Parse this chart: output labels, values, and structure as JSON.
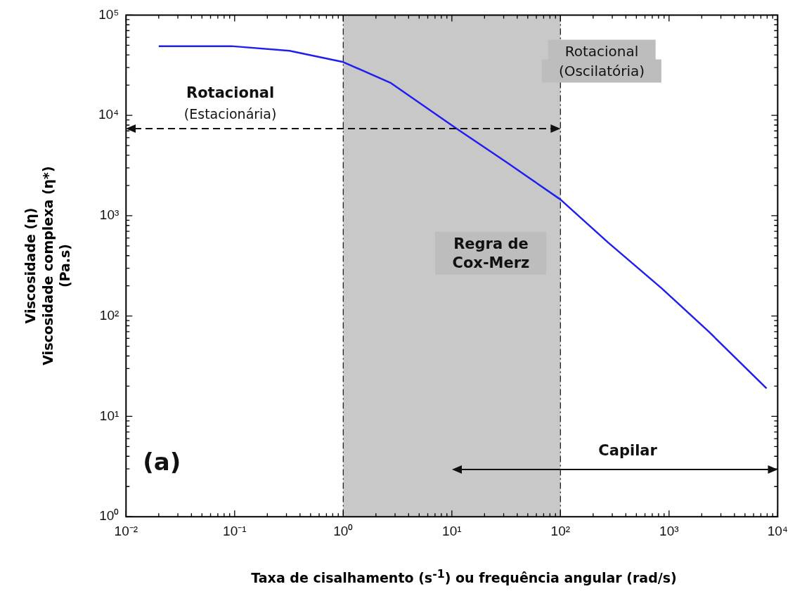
{
  "chart_data": {
    "type": "line",
    "xlabel": "Taxa de cisalhamento  (s$^{-1}$) ou frequência angular (rad/s)",
    "ylabel": "Viscosidade (η)\nViscosidade complexa (η*)\n(Pa.s)",
    "log": "xy",
    "grid": false,
    "legend": false,
    "marker": "none",
    "line_style": "solid",
    "xlim": [
      0.01,
      10000
    ],
    "xticks": [
      {
        "value": 0.01,
        "label": "10⁻²"
      },
      {
        "value": 0.1,
        "label": "10⁻¹"
      },
      {
        "value": 1,
        "label": "10⁰"
      },
      {
        "value": 10,
        "label": "10¹"
      },
      {
        "value": 100,
        "label": "10²"
      },
      {
        "value": 1000,
        "label": "10³"
      },
      {
        "value": 10000,
        "label": "10⁴"
      }
    ],
    "ylim": [
      1,
      100000
    ],
    "yticks": [
      {
        "value": 1,
        "label": "10⁰"
      },
      {
        "value": 10,
        "label": "10¹"
      },
      {
        "value": 100,
        "label": "10²"
      },
      {
        "value": 1000,
        "label": "10³"
      },
      {
        "value": 10000,
        "label": "10⁴"
      },
      {
        "value": 100000,
        "label": "10⁵"
      }
    ],
    "series": [
      {
        "color": "#1f1ff0",
        "x": [
          0.02,
          0.093,
          0.32,
          1,
          2.75,
          11,
          32,
          100,
          275,
          850,
          2350,
          7900
        ],
        "values": [
          49000,
          49000,
          44000,
          34000,
          21000,
          7400,
          3400,
          1450,
          540,
          190,
          69,
          19
        ]
      }
    ],
    "bands": [
      {
        "axis": "x",
        "from": 1,
        "to": 100,
        "color": "#c8c8c8"
      }
    ],
    "ref_lines": [
      {
        "axis": "x",
        "value": 1,
        "line_style": "dashed"
      },
      {
        "axis": "x",
        "value": 100,
        "line_style": "dashed"
      }
    ],
    "annotations": [
      "Rotacional",
      "(Estacionária)",
      "Rotacional",
      "(Oscilatória)",
      "Regra de\nCox-Merz",
      "Capilar",
      "(a)"
    ]
  }
}
